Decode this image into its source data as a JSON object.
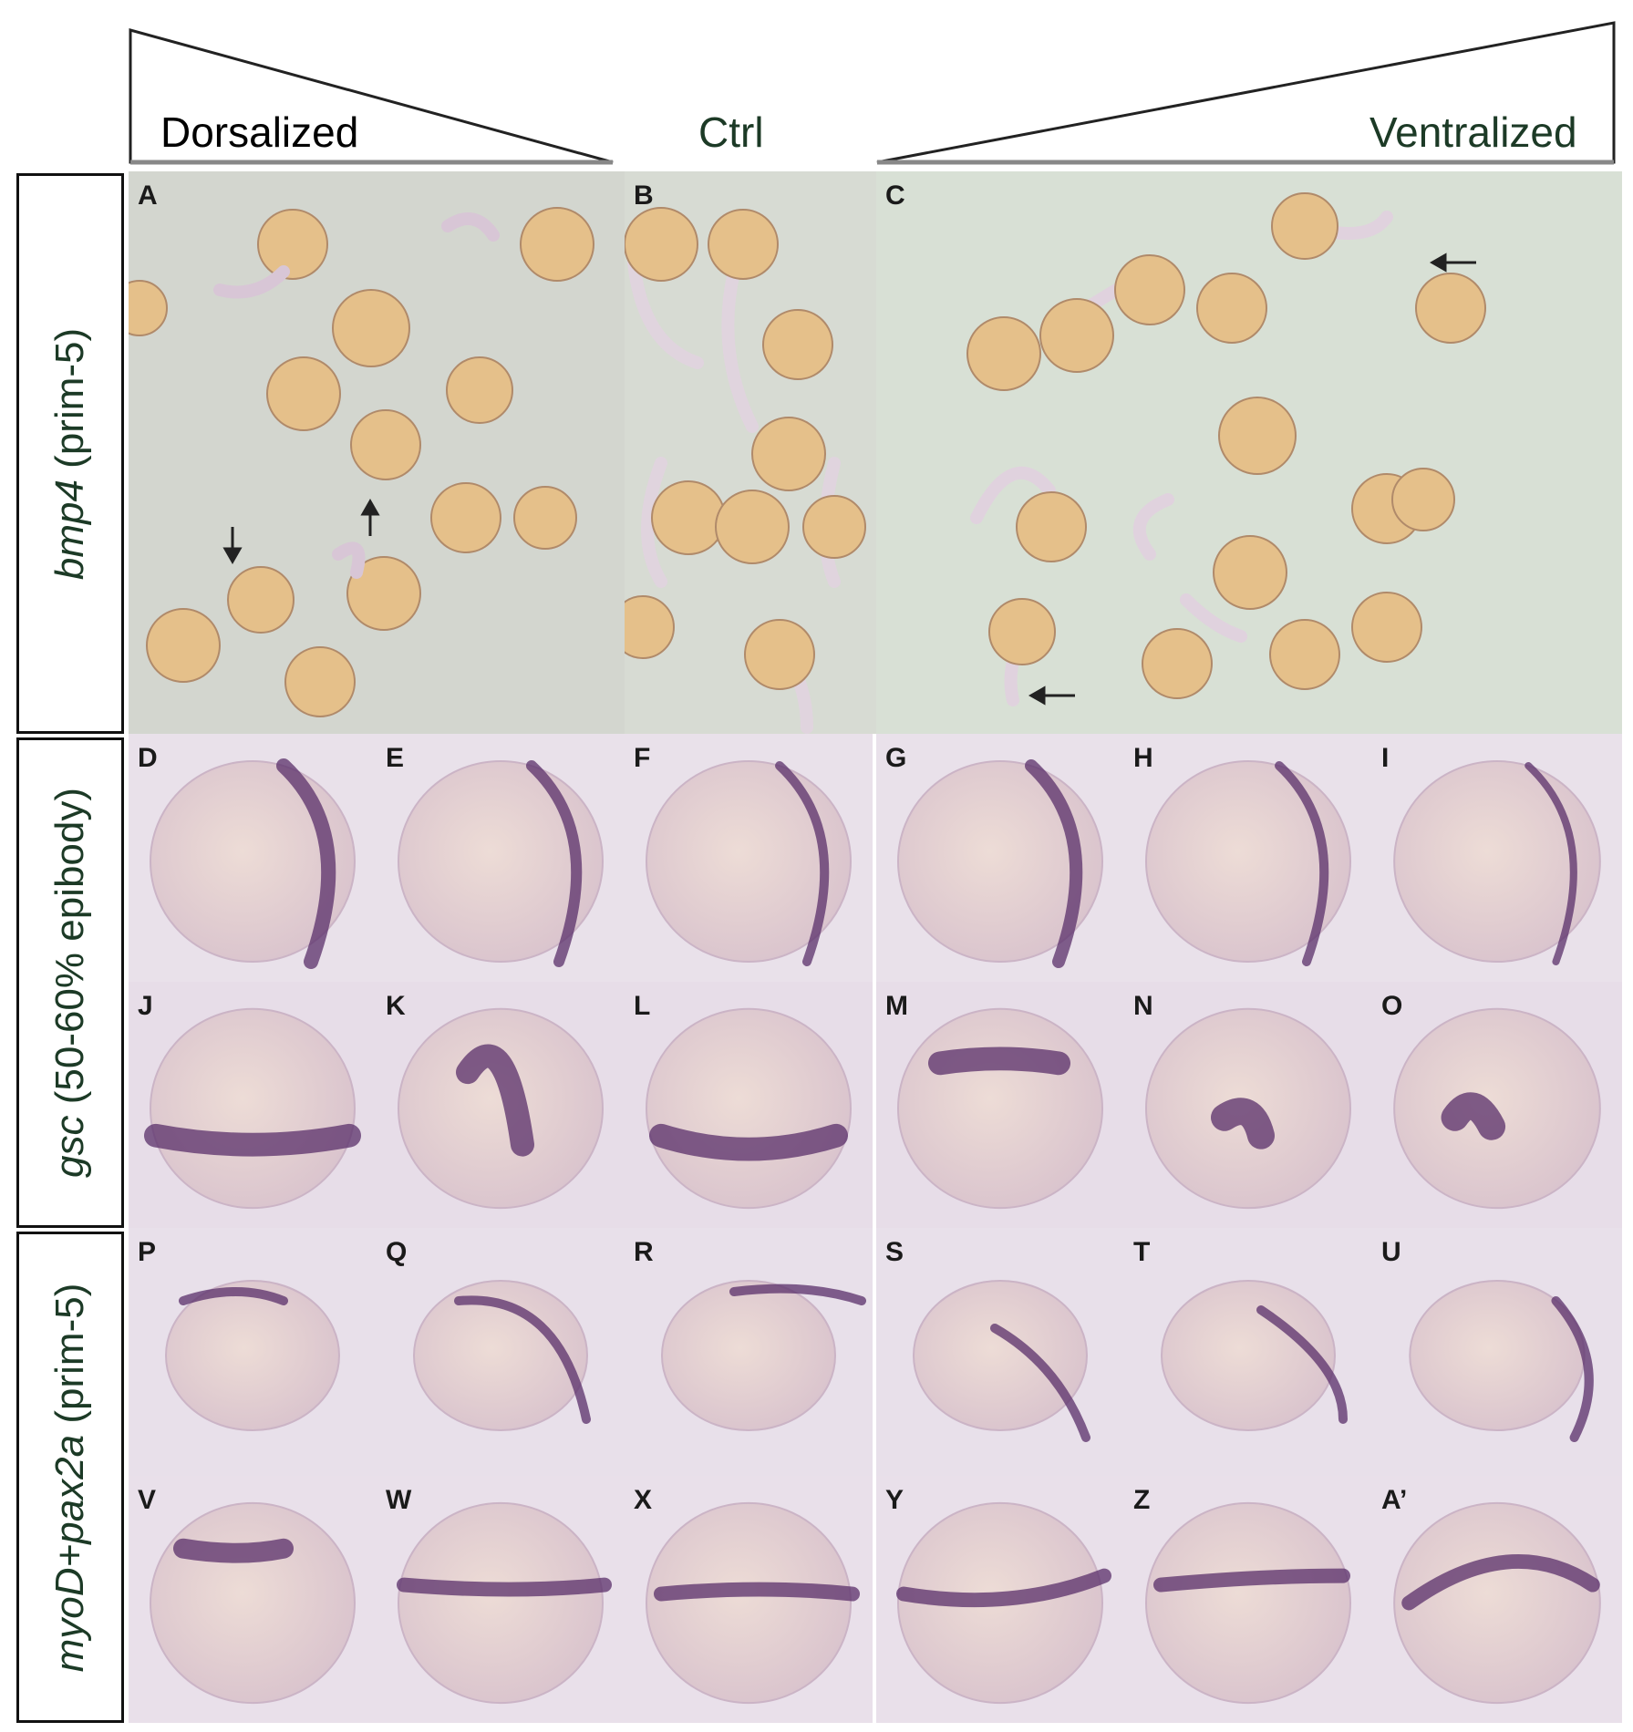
{
  "header": {
    "left": "Dorsalized",
    "center": "Ctrl",
    "right": "Ventralized"
  },
  "rows": [
    {
      "gene": "bmp4",
      "stage": "(prim-5)"
    },
    {
      "gene": "gsc",
      "stage": "(50-60% epibody)"
    },
    {
      "gene": "myoD+pax2a",
      "stage": "(prim-5)"
    }
  ],
  "panel_labels": {
    "top": [
      "A",
      "B",
      "C"
    ],
    "row2": [
      "D",
      "E",
      "F",
      "G",
      "H",
      "I"
    ],
    "row3": [
      "J",
      "K",
      "L",
      "M",
      "N",
      "O"
    ],
    "row4": [
      "P",
      "Q",
      "R",
      "S",
      "T",
      "U"
    ],
    "row5": [
      "V",
      "W",
      "X",
      "Y",
      "Z",
      "A’"
    ]
  },
  "colors": {
    "photo_bg_top": "#d6ddd0",
    "photo_bg_stage": "#e6dce6",
    "embryo_yolk": "#e7c48d",
    "stain_purple": "#5a2f6a"
  }
}
